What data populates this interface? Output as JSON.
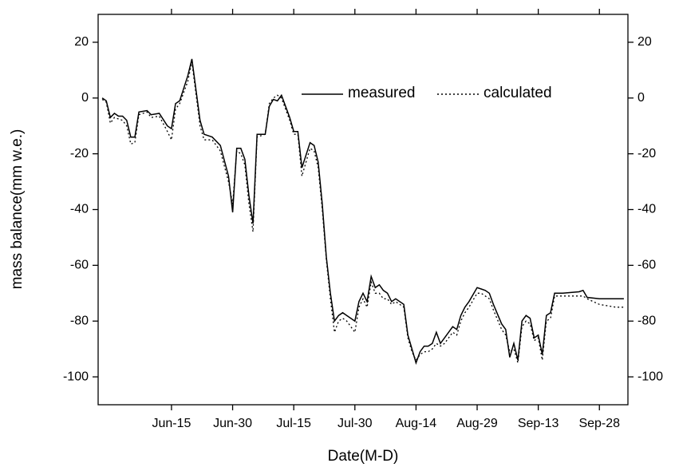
{
  "chart_data": {
    "type": "line",
    "x_label": "Date(M-D)",
    "y_label": "mass balance(mm w.e.)",
    "x": [
      "05-29",
      "05-30",
      "05-31",
      "06-01",
      "06-02",
      "06-03",
      "06-04",
      "06-05",
      "06-06",
      "06-07",
      "06-09",
      "06-10",
      "06-12",
      "06-14",
      "06-15",
      "06-16",
      "06-17",
      "06-19",
      "06-20",
      "06-22",
      "06-23",
      "06-25",
      "06-27",
      "06-29",
      "06-30",
      "07-01",
      "07-02",
      "07-03",
      "07-04",
      "07-05",
      "07-06",
      "07-08",
      "07-09",
      "07-10",
      "07-11",
      "07-12",
      "07-14",
      "07-15",
      "07-16",
      "07-17",
      "07-19",
      "07-20",
      "07-21",
      "07-22",
      "07-23",
      "07-24",
      "07-25",
      "07-26",
      "07-27",
      "07-28",
      "07-30",
      "07-31",
      "08-01",
      "08-02",
      "08-03",
      "08-04",
      "08-05",
      "08-06",
      "08-07",
      "08-08",
      "08-09",
      "08-11",
      "08-12",
      "08-13",
      "08-14",
      "08-15",
      "08-16",
      "08-17",
      "08-18",
      "08-19",
      "08-20",
      "08-21",
      "08-22",
      "08-23",
      "08-24",
      "08-25",
      "08-26",
      "08-27",
      "08-29",
      "08-30",
      "08-31",
      "09-01",
      "09-02",
      "09-04",
      "09-05",
      "09-06",
      "09-07",
      "09-08",
      "09-09",
      "09-10",
      "09-11",
      "09-12",
      "09-13",
      "09-14",
      "09-15",
      "09-16",
      "09-17",
      "09-19",
      "09-23",
      "09-24",
      "09-25",
      "09-28",
      "10-02",
      "10-04"
    ],
    "series": [
      {
        "name": "measured",
        "color": "#000000",
        "dash": "solid",
        "values": [
          0,
          -1,
          -7,
          -5.5,
          -6.5,
          -6.5,
          -8,
          -14,
          -14,
          -5,
          -4.5,
          -6,
          -5.5,
          -10,
          -11,
          -2,
          -1,
          8,
          14,
          -8,
          -13,
          -14,
          -17,
          -28,
          -41,
          -18,
          -18,
          -22,
          -35,
          -45,
          -13,
          -13,
          -3,
          -0.5,
          -1,
          1,
          -7,
          -12,
          -12,
          -25,
          -16,
          -17,
          -23,
          -38,
          -57,
          -70,
          -80,
          -78,
          -77,
          -78,
          -80,
          -73,
          -70,
          -73,
          -64,
          -68,
          -67,
          -69,
          -70,
          -73,
          -72,
          -74,
          -85,
          -90,
          -95,
          -91,
          -89,
          -89,
          -88,
          -84,
          -88,
          -86,
          -84,
          -82,
          -83,
          -78,
          -75,
          -73,
          -68,
          -68.5,
          -69,
          -70,
          -74,
          -81,
          -83,
          -93,
          -88,
          -94,
          -80,
          -78,
          -79,
          -86,
          -85,
          -92,
          -78,
          -77,
          -70,
          -70,
          -69.5,
          -69,
          -71.5,
          -72,
          -72,
          -72
        ]
      },
      {
        "name": "calculated",
        "color": "#000000",
        "dash": "dotted",
        "values": [
          -0.5,
          -1.5,
          -9,
          -7,
          -7.5,
          -8,
          -10,
          -16.5,
          -16,
          -6,
          -5,
          -7,
          -6.5,
          -12,
          -15,
          -4,
          -2,
          6,
          13,
          -10,
          -15,
          -15,
          -19,
          -30,
          -38,
          -19,
          -20,
          -24,
          -38,
          -48,
          -14,
          -13,
          -2,
          0,
          1,
          0,
          -8,
          -13,
          -13,
          -28,
          -18,
          -19,
          -25,
          -40,
          -58,
          -72,
          -84,
          -80,
          -79,
          -80,
          -84,
          -75,
          -72,
          -75,
          -66,
          -70,
          -70,
          -72,
          -72,
          -74,
          -73,
          -75,
          -86,
          -91,
          -94,
          -92,
          -91,
          -91,
          -90,
          -88,
          -89,
          -88,
          -86,
          -84,
          -85,
          -80,
          -77,
          -75,
          -70,
          -70,
          -71,
          -72,
          -76,
          -83,
          -85,
          -91,
          -90,
          -95,
          -82,
          -80,
          -81,
          -87,
          -86,
          -94,
          -80,
          -79,
          -71,
          -71,
          -71,
          -71,
          -72,
          -74,
          -75,
          -75
        ]
      }
    ],
    "xlim": [
      "05-28",
      "10-05"
    ],
    "xticks": [
      {
        "value": "06-15",
        "label": "Jun-15"
      },
      {
        "value": "06-30",
        "label": "Jun-30"
      },
      {
        "value": "07-15",
        "label": "Jul-15"
      },
      {
        "value": "07-30",
        "label": "Jul-30"
      },
      {
        "value": "08-14",
        "label": "Aug-14"
      },
      {
        "value": "08-29",
        "label": "Aug-29"
      },
      {
        "value": "09-13",
        "label": "Sep-13"
      },
      {
        "value": "09-28",
        "label": "Sep-28"
      }
    ],
    "ylim": [
      -110,
      30
    ],
    "yticks": [
      -100,
      -80,
      -60,
      -40,
      -20,
      0,
      20
    ],
    "mirror_y_axis": true,
    "legend": "upper center"
  }
}
